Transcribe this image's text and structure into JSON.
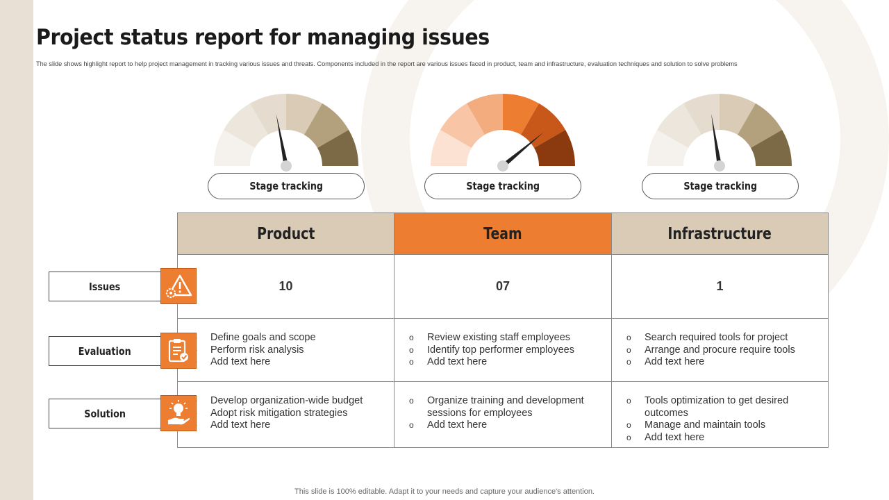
{
  "title": "Project status report for managing issues",
  "subtitle": "The slide shows highlight report to help project management  in tracking various issues and threats. Components included in the report are various issues faced in product, team and infrastructure, evaluation techniques and solution to solve problems",
  "gauges": [
    {
      "label": "Stage tracking",
      "colors": [
        "#f5f1ec",
        "#ede6dc",
        "#e5dccf",
        "#d9cbb5",
        "#b3a07d",
        "#7b6a45"
      ],
      "level": 0.44
    },
    {
      "label": "Stage tracking",
      "colors": [
        "#fbe2d3",
        "#f8c6a6",
        "#f3ac7e",
        "#ed7d31",
        "#c8571a",
        "#8b3a10"
      ],
      "level": 0.78
    },
    {
      "label": "Stage tracking",
      "colors": [
        "#f5f1ec",
        "#ede6dc",
        "#e5dccf",
        "#d9cbb5",
        "#b3a07d",
        "#7b6a45"
      ],
      "level": 0.45
    }
  ],
  "columns": [
    {
      "name": "Product",
      "color": "#d9cbb5"
    },
    {
      "name": "Team",
      "color": "#ed7d31"
    },
    {
      "name": "Infrastructure",
      "color": "#d9cbb5"
    }
  ],
  "rows": [
    {
      "label": "Issues",
      "icon": "warning-gear-icon"
    },
    {
      "label": "Evaluation",
      "icon": "clipboard-check-icon"
    },
    {
      "label": "Solution",
      "icon": "lightbulb-hand-icon"
    }
  ],
  "issues": [
    "10",
    "07",
    "1"
  ],
  "evaluation": [
    [
      "Define goals and scope",
      "Perform risk analysis",
      "Add text here"
    ],
    [
      "Review existing staff employees",
      "Identify top performer employees",
      "Add text here"
    ],
    [
      "Search required tools for project",
      "Arrange and procure require tools",
      "Add text here"
    ]
  ],
  "solution": [
    [
      "Develop organization-wide budget",
      "Adopt risk mitigation strategies",
      "Add text here"
    ],
    [
      "Organize training and development sessions for employees",
      "Add text here"
    ],
    [
      "Tools optimization to get desired outcomes",
      "Manage and maintain tools",
      "Add text here"
    ]
  ],
  "footer": "This slide is 100% editable. Adapt it to your needs and capture your audience's attention.",
  "accent": "#ed7d31"
}
